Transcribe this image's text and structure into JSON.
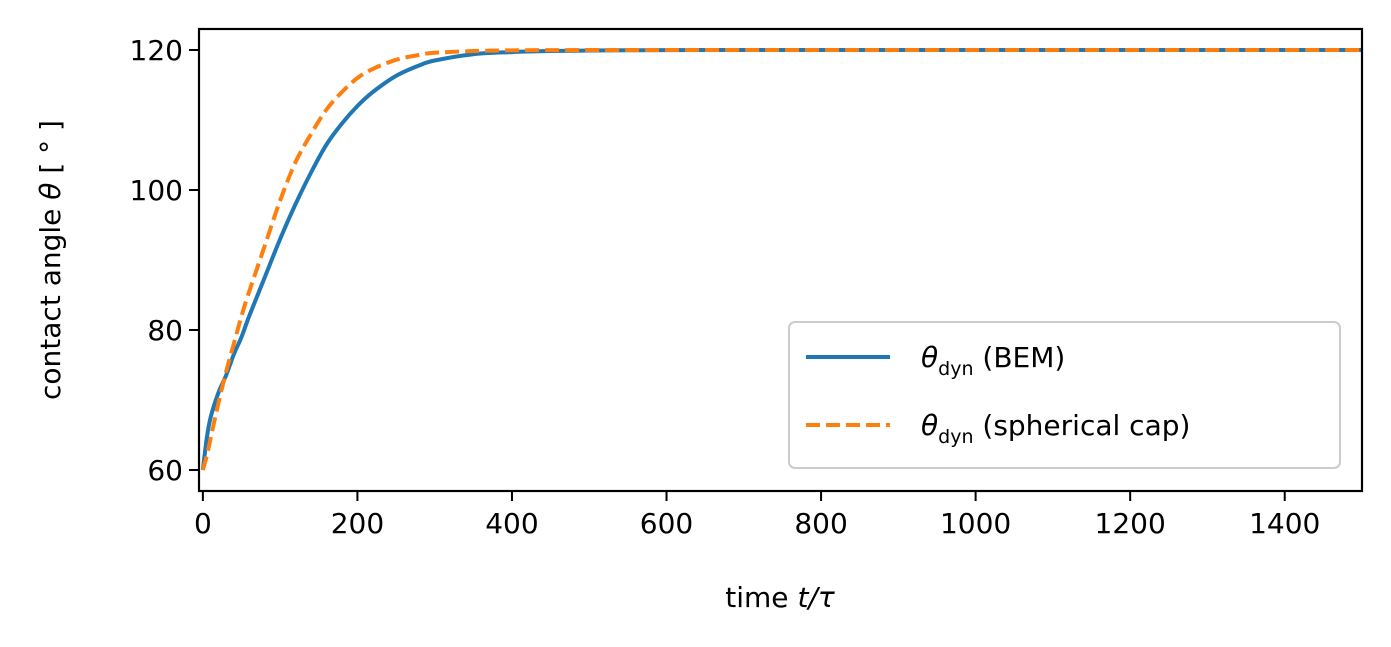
{
  "chart_data": {
    "type": "line",
    "xlabel": "time t/τ",
    "ylabel": "contact angle θ [°]",
    "xlim": [
      -5,
      1500
    ],
    "ylim": [
      57,
      123
    ],
    "xticks": [
      0,
      200,
      400,
      600,
      800,
      1000,
      1200,
      1400
    ],
    "yticks": [
      60,
      80,
      100,
      120
    ],
    "grid": false,
    "legend_position": "lower-right",
    "series": [
      {
        "name": "θdyn (BEM)",
        "color": "#1f77b4",
        "style": "solid",
        "x": [
          0,
          5,
          10,
          20,
          30,
          40,
          50,
          60,
          80,
          100,
          120,
          140,
          160,
          180,
          200,
          220,
          250,
          280,
          300,
          350,
          400,
          450,
          500,
          550,
          600,
          700,
          800,
          1000,
          1200,
          1400,
          1500
        ],
        "y": [
          60,
          64.5,
          67.5,
          71,
          73.5,
          76.5,
          79,
          82,
          87.5,
          93,
          98,
          102.5,
          106.5,
          109.5,
          112,
          114,
          116.3,
          117.8,
          118.5,
          119.4,
          119.7,
          119.85,
          119.92,
          119.96,
          119.98,
          120,
          120,
          120,
          120,
          120,
          120
        ]
      },
      {
        "name": "θdyn (spherical cap)",
        "color": "#ff7f0e",
        "style": "dashed",
        "x": [
          0,
          5,
          10,
          20,
          30,
          40,
          50,
          60,
          80,
          100,
          120,
          140,
          160,
          180,
          200,
          220,
          250,
          280,
          300,
          350,
          400,
          450,
          500,
          550,
          600,
          700,
          800,
          1000,
          1200,
          1400,
          1500
        ],
        "y": [
          60,
          62,
          64.5,
          69.5,
          74,
          78,
          82,
          85.5,
          92,
          98.5,
          104,
          108,
          111.5,
          114,
          116,
          117.3,
          118.6,
          119.3,
          119.6,
          119.85,
          119.95,
          119.98,
          120,
          120,
          120,
          120,
          120,
          120,
          120,
          120,
          120
        ]
      }
    ],
    "legend_entries": [
      {
        "symbol": "θ",
        "sub": "dyn",
        "rest": " (BEM)"
      },
      {
        "symbol": "θ",
        "sub": "dyn",
        "rest": " (spherical cap)"
      }
    ],
    "xlabel_parts": {
      "pre": "time ",
      "italic": "t/τ"
    },
    "ylabel_parts": {
      "pre": "contact angle ",
      "italic": "θ",
      "post": " [ ° ]"
    }
  }
}
